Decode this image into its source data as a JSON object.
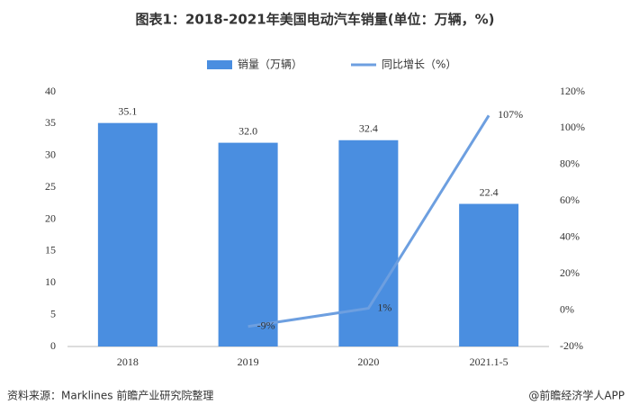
{
  "chart_data": {
    "type": "bar",
    "title": "图表1：2018-2021年美国电动汽车销量(单位：万辆，%)",
    "categories": [
      "2018",
      "2019",
      "2020",
      "2021.1-5"
    ],
    "series": [
      {
        "name": "销量（万辆）",
        "type": "bar",
        "color": "#4a8ee0",
        "values": [
          35.1,
          32.0,
          32.4,
          22.4
        ],
        "value_labels": [
          "35.1",
          "32.0",
          "32.4",
          "22.4"
        ]
      },
      {
        "name": "同比增长（%）",
        "type": "line",
        "axis": "y2",
        "color": "#6d9fe0",
        "values": [
          null,
          -9,
          1,
          107
        ],
        "value_labels": [
          null,
          "-9%",
          "1%",
          "107%"
        ]
      }
    ],
    "ylim": [
      0,
      40
    ],
    "yticks": [
      0,
      5,
      10,
      15,
      20,
      25,
      30,
      35,
      40
    ],
    "y2lim": [
      -20,
      120
    ],
    "y2ticks": [
      {
        "value": -20,
        "label": "-20%"
      },
      {
        "value": 0,
        "label": "0%"
      },
      {
        "value": 20,
        "label": "20%"
      },
      {
        "value": 40,
        "label": "40%"
      },
      {
        "value": 60,
        "label": "60%"
      },
      {
        "value": 80,
        "label": "80%"
      },
      {
        "value": 100,
        "label": "100%"
      },
      {
        "value": 120,
        "label": "120%"
      }
    ],
    "grid": false,
    "legend": "top",
    "source": "资料来源：Marklines 前瞻产业研究院整理",
    "credit": "@前瞻经济学人APP"
  }
}
